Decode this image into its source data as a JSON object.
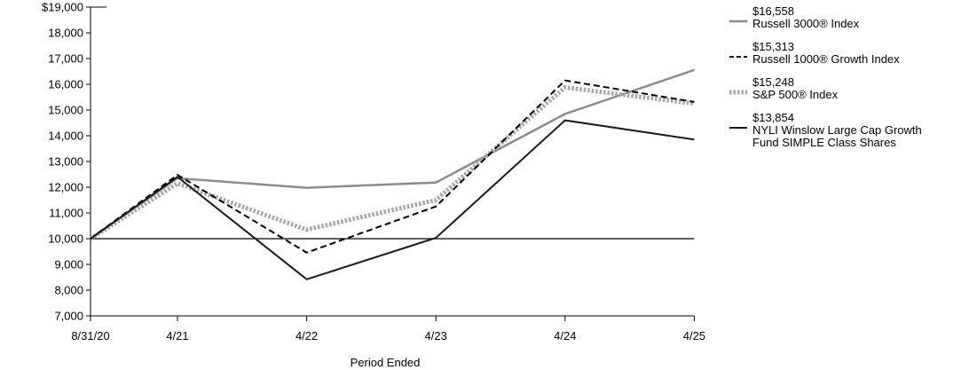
{
  "chart_data": {
    "type": "line",
    "x": [
      "8/31/20",
      "4/21",
      "4/22",
      "4/23",
      "4/24",
      "4/25"
    ],
    "xlabel": "Period Ended",
    "ylabel": "",
    "ylim": [
      7000,
      19000
    ],
    "yticks": [
      7000,
      8000,
      9000,
      10000,
      11000,
      12000,
      13000,
      14000,
      15000,
      16000,
      17000,
      18000,
      19000
    ],
    "ytick_labels": [
      "7,000",
      "8,000",
      "9,000",
      "10,000",
      "11,000",
      "12,000",
      "13,000",
      "14,000",
      "15,000",
      "16,000",
      "17,000",
      "18,000",
      "$19,000"
    ],
    "reference_line": 10000,
    "grid": false,
    "legend_position": "right",
    "series": [
      {
        "name": "Russell 3000® Index",
        "end_label": "$16,558",
        "color": "#8c8c8c",
        "style": "solid",
        "values": [
          10000,
          12350,
          11980,
          12180,
          14850,
          16558
        ]
      },
      {
        "name": "Russell 1000® Growth Index",
        "end_label": "$15,313",
        "color": "#000000",
        "style": "dashed",
        "values": [
          10000,
          12480,
          9460,
          11250,
          16150,
          15313
        ]
      },
      {
        "name": "S&P 500® Index",
        "end_label": "$15,248",
        "color": "#a6a6a6",
        "style": "dotted",
        "values": [
          10000,
          12150,
          10350,
          11500,
          15880,
          15248
        ]
      },
      {
        "name": "NYLI Winslow Large Cap Growth Fund SIMPLE Class Shares",
        "end_label": "$13,854",
        "color": "#1a1a1a",
        "style": "solid",
        "values": [
          10000,
          12400,
          8420,
          10030,
          14600,
          13854
        ]
      }
    ]
  }
}
